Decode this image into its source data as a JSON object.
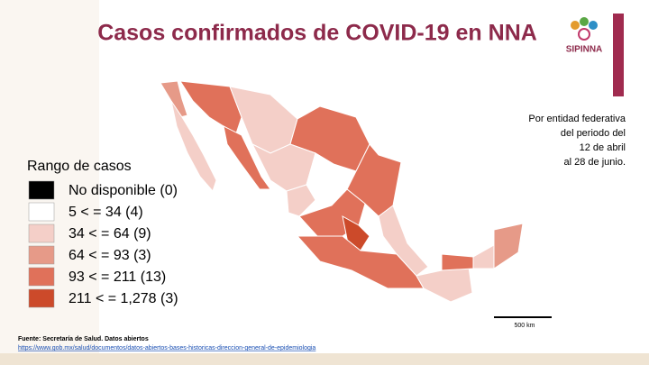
{
  "header": {
    "title": "Casos confirmados de COVID-19 en NNA",
    "logo": "SIPINNA"
  },
  "note": [
    "Por entidad federativa",
    "del periodo del",
    "12 de abril",
    "al 28 de junio."
  ],
  "legend": {
    "title": "Rango de casos",
    "items": [
      {
        "label": "No disponible (0)",
        "color": "#000000"
      },
      {
        "label": "5 < = 34 (4)",
        "color": "#ffffff"
      },
      {
        "label": "34 < = 64 (9)",
        "color": "#f4cfc8"
      },
      {
        "label": "64 < = 93 (3)",
        "color": "#e69a88"
      },
      {
        "label": "93 < = 211 (13)",
        "color": "#e0715a"
      },
      {
        "label": "211 < = 1,278 (3)",
        "color": "#cc4a2a"
      }
    ]
  },
  "map": {
    "scale": "500 km"
  },
  "source": {
    "text": "Fuente: Secretaría de Salud. Datos abiertos",
    "url": "https://www.gob.mx/salud/documentos/datos-abiertos-bases-historicas-direccion-general-de-epidemiologia"
  }
}
